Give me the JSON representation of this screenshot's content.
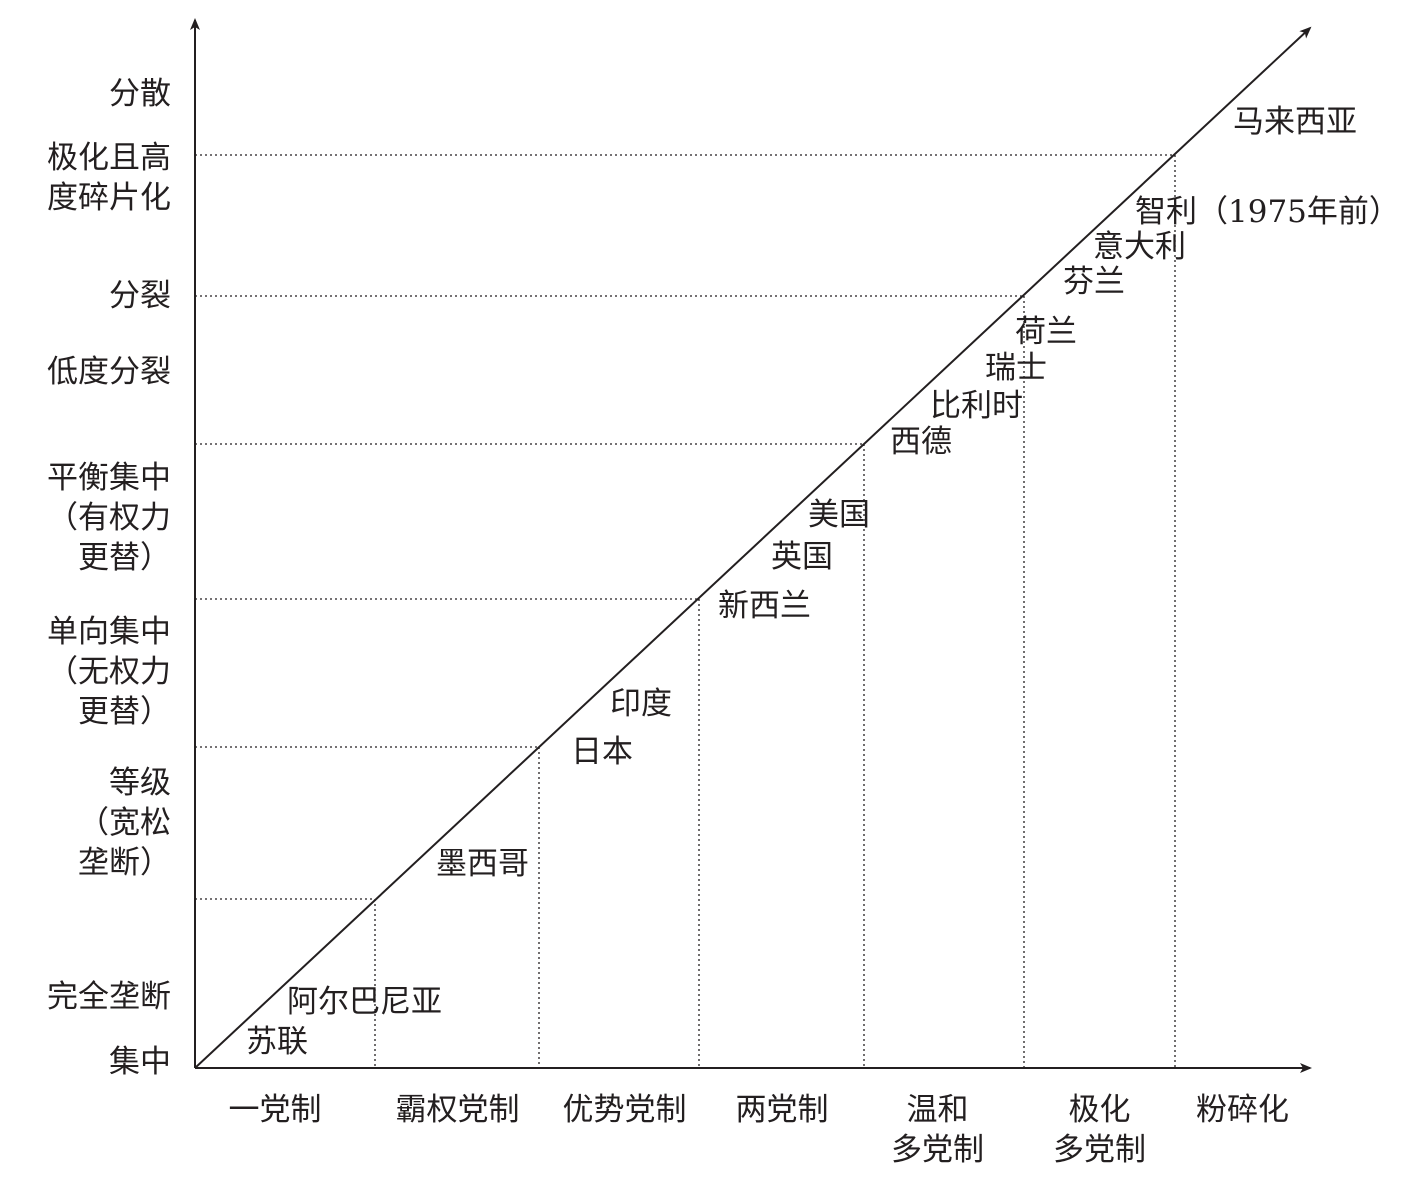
{
  "y_axis": {
    "labels": [
      {
        "lines": [
          "分散"
        ]
      },
      {
        "lines": [
          "极化且高",
          "度碎片化"
        ]
      },
      {
        "lines": [
          "分裂"
        ]
      },
      {
        "lines": [
          "低度分裂"
        ]
      },
      {
        "lines": [
          "平衡集中",
          "（有权力",
          "更替）"
        ]
      },
      {
        "lines": [
          "单向集中",
          "（无权力",
          "更替）"
        ]
      },
      {
        "lines": [
          "等级",
          "（宽松",
          "垄断）"
        ]
      },
      {
        "lines": [
          "完全垄断"
        ]
      },
      {
        "lines": [
          "集中"
        ]
      }
    ]
  },
  "x_axis": {
    "labels": [
      {
        "lines": [
          "一党制"
        ]
      },
      {
        "lines": [
          "霸权党制"
        ]
      },
      {
        "lines": [
          "优势党制"
        ]
      },
      {
        "lines": [
          "两党制"
        ]
      },
      {
        "lines": [
          "温和",
          "多党制"
        ]
      },
      {
        "lines": [
          "极化",
          "多党制"
        ]
      },
      {
        "lines": [
          "粉碎化"
        ]
      }
    ]
  },
  "countries": [
    "苏联",
    "阿尔巴尼亚",
    "墨西哥",
    "日本",
    "印度",
    "新西兰",
    "英国",
    "美国",
    "西德",
    "比利时",
    "瑞士",
    "荷兰",
    "芬兰",
    "意大利",
    "智利（1975年前）",
    "马来西亚"
  ]
}
